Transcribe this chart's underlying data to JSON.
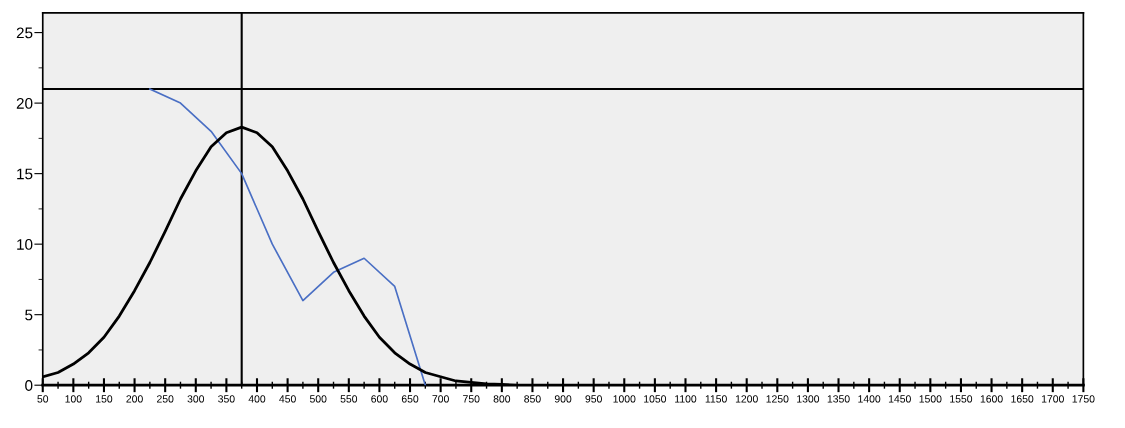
{
  "chart_data": {
    "type": "line",
    "xlim": [
      50,
      1750
    ],
    "ylim": [
      0,
      26.4
    ],
    "xticks": [
      50,
      {
        "value": 75,
        "label": null
      },
      100,
      {
        "value": 125,
        "label": null
      },
      150,
      {
        "value": 175,
        "label": null
      },
      200,
      {
        "value": 225,
        "label": null
      },
      250,
      {
        "value": 275,
        "label": null
      },
      300,
      {
        "value": 325,
        "label": null
      },
      350,
      {
        "value": 375,
        "label": null
      },
      400,
      {
        "value": 425,
        "label": null
      },
      450,
      {
        "value": 475,
        "label": null
      },
      500,
      {
        "value": 525,
        "label": null
      },
      550,
      {
        "value": 575,
        "label": null
      },
      600,
      {
        "value": 625,
        "label": null
      },
      650,
      {
        "value": 675,
        "label": null
      },
      700,
      {
        "value": 725,
        "label": null
      },
      750,
      {
        "value": 775,
        "label": null
      },
      800,
      {
        "value": 825,
        "label": null
      },
      850,
      {
        "value": 875,
        "label": null
      },
      900,
      {
        "value": 925,
        "label": null
      },
      950,
      {
        "value": 975,
        "label": null
      },
      1000,
      {
        "value": 1025,
        "label": null
      },
      1050,
      {
        "value": 1075,
        "label": null
      },
      1100,
      {
        "value": 1125,
        "label": null
      },
      1150,
      {
        "value": 1175,
        "label": null
      },
      1200,
      {
        "value": 1225,
        "label": null
      },
      1250,
      {
        "value": 1275,
        "label": null
      },
      1300,
      {
        "value": 1325,
        "label": null
      },
      1350,
      {
        "value": 1375,
        "label": null
      },
      1400,
      {
        "value": 1425,
        "label": null
      },
      1450,
      {
        "value": 1475,
        "label": null
      },
      1500,
      {
        "value": 1525,
        "label": null
      },
      1550,
      {
        "value": 1575,
        "label": null
      },
      1600,
      {
        "value": 1625,
        "label": null
      },
      1650,
      {
        "value": 1675,
        "label": null
      },
      1700,
      {
        "value": 1725,
        "label": null
      },
      1750
    ],
    "yticks": [
      0,
      {
        "value": 2.5,
        "label": null
      },
      5,
      {
        "value": 7.5,
        "label": null
      },
      10,
      {
        "value": 12.5,
        "label": null
      },
      15,
      {
        "value": 17.5,
        "label": null
      },
      20,
      {
        "value": 22.5,
        "label": null
      },
      25
    ],
    "grid": false,
    "line_style": "solid",
    "marker": "none",
    "series": [
      {
        "color": "#4a6fc4",
        "x": [
          225,
          275,
          325,
          375,
          425,
          475,
          525,
          575,
          625,
          675
        ],
        "values": [
          21,
          20,
          18,
          15,
          10,
          6,
          8,
          9,
          7,
          0
        ]
      },
      {
        "color": "#000000",
        "x": [
          50,
          75,
          100,
          125,
          150,
          175,
          200,
          225,
          250,
          275,
          300,
          325,
          350,
          375,
          400,
          425,
          450,
          475,
          500,
          525,
          550,
          575,
          600,
          625,
          650,
          675,
          700,
          725,
          750,
          775,
          800,
          825
        ],
        "values": [
          0.6,
          0.9,
          1.5,
          2.3,
          3.4,
          4.9,
          6.7,
          8.7,
          10.9,
          13.2,
          15.2,
          16.9,
          17.9,
          18.3,
          17.9,
          16.9,
          15.2,
          13.2,
          10.9,
          8.7,
          6.7,
          4.9,
          3.4,
          2.3,
          1.5,
          0.9,
          0.6,
          0.3,
          0.2,
          0.1,
          0.05,
          0
        ]
      }
    ],
    "ref_lines": [
      {
        "axis": "x",
        "value": 375,
        "color": "#000000"
      },
      {
        "axis": "y",
        "value": 21,
        "color": "#000000"
      }
    ]
  }
}
